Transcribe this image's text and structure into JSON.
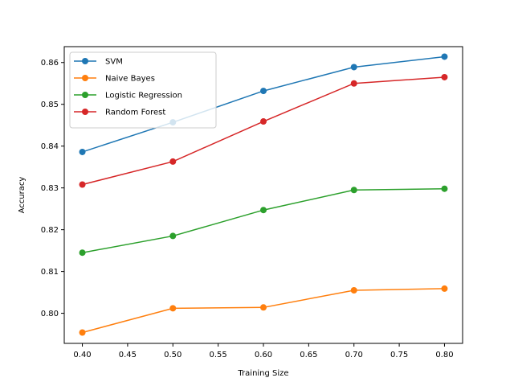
{
  "chart_data": {
    "type": "line",
    "title": "",
    "xlabel": "Training Size",
    "ylabel": "Accuracy",
    "x": [
      0.4,
      0.5,
      0.6,
      0.7,
      0.8
    ],
    "xlim": [
      0.38,
      0.82
    ],
    "ylim": [
      0.7928,
      0.8638
    ],
    "xticks": [
      "0.40",
      "0.45",
      "0.50",
      "0.55",
      "0.60",
      "0.65",
      "0.70",
      "0.75",
      "0.80"
    ],
    "yticks": [
      "0.80",
      "0.81",
      "0.82",
      "0.83",
      "0.84",
      "0.85",
      "0.86"
    ],
    "grid": false,
    "legend_position": "top-left",
    "series": [
      {
        "name": "SVM",
        "color": "#1f77b4",
        "values": [
          0.8386,
          0.8457,
          0.8532,
          0.8589,
          0.8614
        ]
      },
      {
        "name": "Naive Bayes",
        "color": "#ff7f0e",
        "values": [
          0.7954,
          0.8012,
          0.8014,
          0.8055,
          0.8059
        ]
      },
      {
        "name": "Logistic Regression",
        "color": "#2ca02c",
        "values": [
          0.8145,
          0.8185,
          0.8247,
          0.8295,
          0.8298
        ]
      },
      {
        "name": "Random Forest",
        "color": "#d62728",
        "values": [
          0.8308,
          0.8363,
          0.8459,
          0.855,
          0.8565
        ]
      }
    ]
  }
}
